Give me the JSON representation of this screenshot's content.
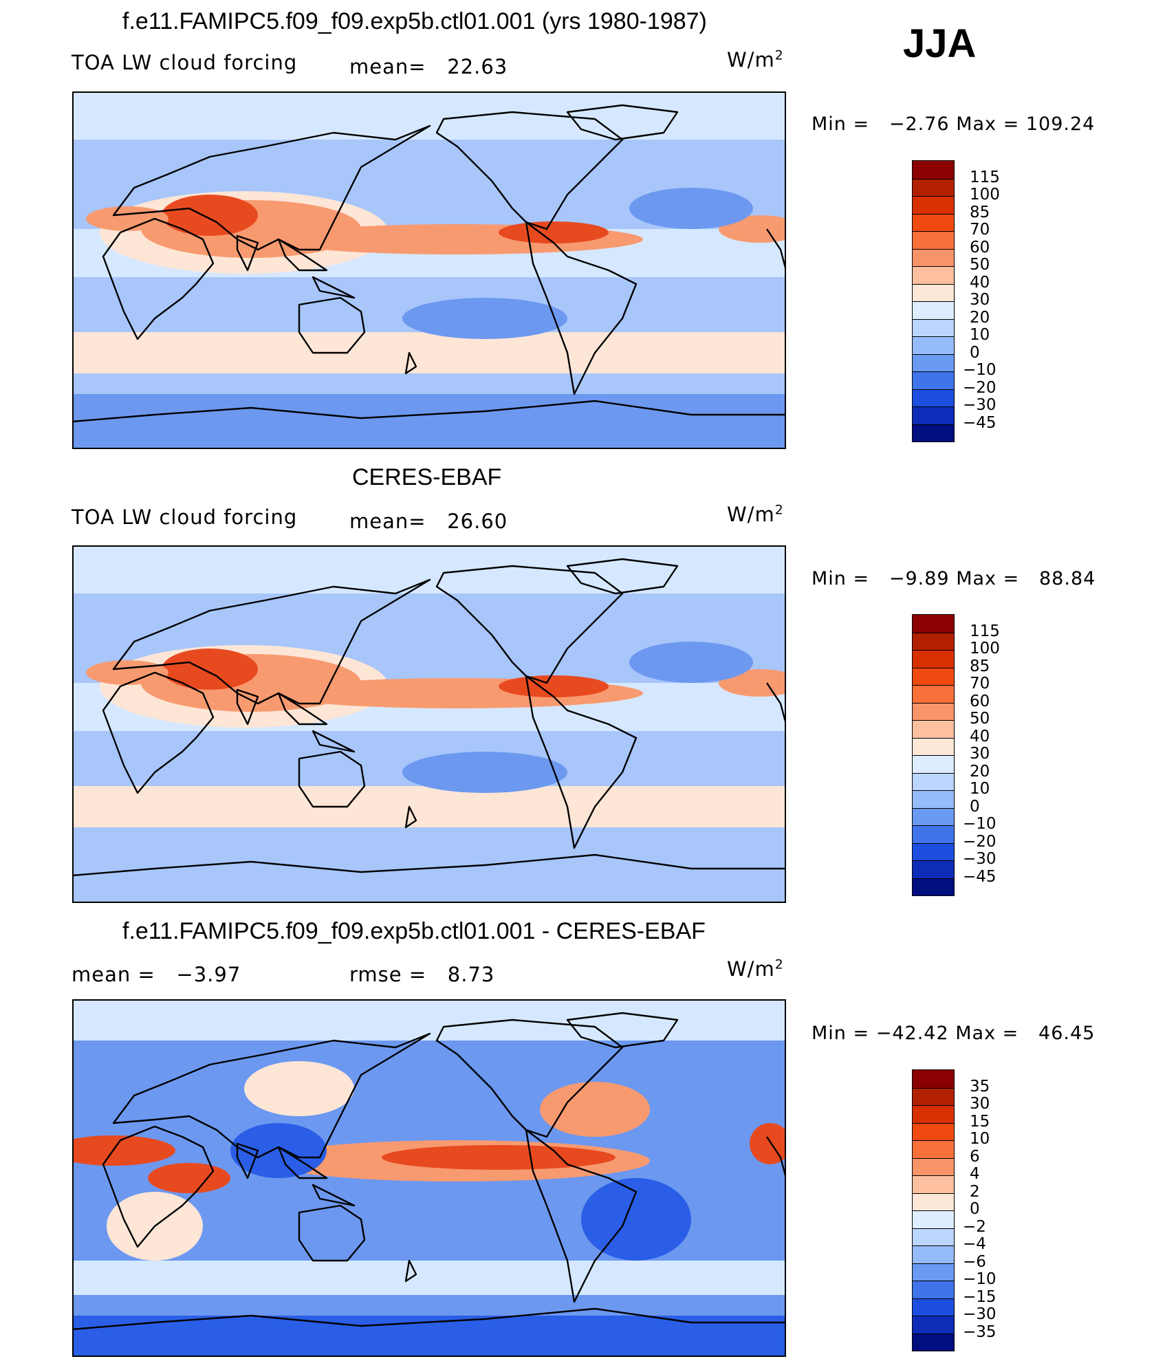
{
  "season": "JJA",
  "panels": [
    {
      "title": "f.e11.FAMIPC5.f09_f09.exp5b.ctl01.001 (yrs 1980-1987)",
      "left_label": "TOA LW cloud forcing",
      "mid_label": "mean=",
      "mid_value": "22.63",
      "units": "W/m",
      "units_exp": "2",
      "min_label": "Min  =",
      "min_value": "−2.76",
      "max_label": "Max  =",
      "max_value": "109.24",
      "colorbar_labels": [
        "115",
        "100",
        "85",
        "70",
        "60",
        "50",
        "40",
        "30",
        "20",
        "10",
        "0",
        "−10",
        "−20",
        "−30",
        "−45"
      ]
    },
    {
      "title": "CERES-EBAF",
      "left_label": "TOA LW cloud forcing",
      "mid_label": "mean=",
      "mid_value": "26.60",
      "units": "W/m",
      "units_exp": "2",
      "min_label": "Min  =",
      "min_value": "−9.89",
      "max_label": "Max  =",
      "max_value": "88.84",
      "colorbar_labels": [
        "115",
        "100",
        "85",
        "70",
        "60",
        "50",
        "40",
        "30",
        "20",
        "10",
        "0",
        "−10",
        "−20",
        "−30",
        "−45"
      ]
    },
    {
      "title": "f.e11.FAMIPC5.f09_f09.exp5b.ctl01.001 - CERES-EBAF",
      "left_label": "mean  =",
      "left_value": "−3.97",
      "mid_label": "rmse  =",
      "mid_value": "8.73",
      "units": "W/m",
      "units_exp": "2",
      "min_label": "Min  =",
      "min_value": "−42.42",
      "max_label": "Max  =",
      "max_value": "46.45",
      "colorbar_labels": [
        "35",
        "30",
        "15",
        "10",
        "6",
        "4",
        "2",
        "0",
        "−2",
        "−4",
        "−6",
        "−10",
        "−15",
        "−30",
        "−35"
      ]
    }
  ],
  "colorbar_colors": [
    "#8b0000",
    "#b22000",
    "#d83000",
    "#f04a10",
    "#f8703a",
    "#f99468",
    "#fcc0a0",
    "#fde8d8",
    "#dceeff",
    "#bcd6ff",
    "#96bbfb",
    "#6a9af2",
    "#3f74ea",
    "#1c4fe0",
    "#0d2cb8",
    "#000e80"
  ],
  "map_colors": {
    "red": "#e84a20",
    "orange": "#f89a70",
    "peach": "#fde6d6",
    "lightblue": "#d6e8ff",
    "blue": "#a8c6fa",
    "midblue": "#6c98f0",
    "deepblue": "#2a5ee6"
  }
}
